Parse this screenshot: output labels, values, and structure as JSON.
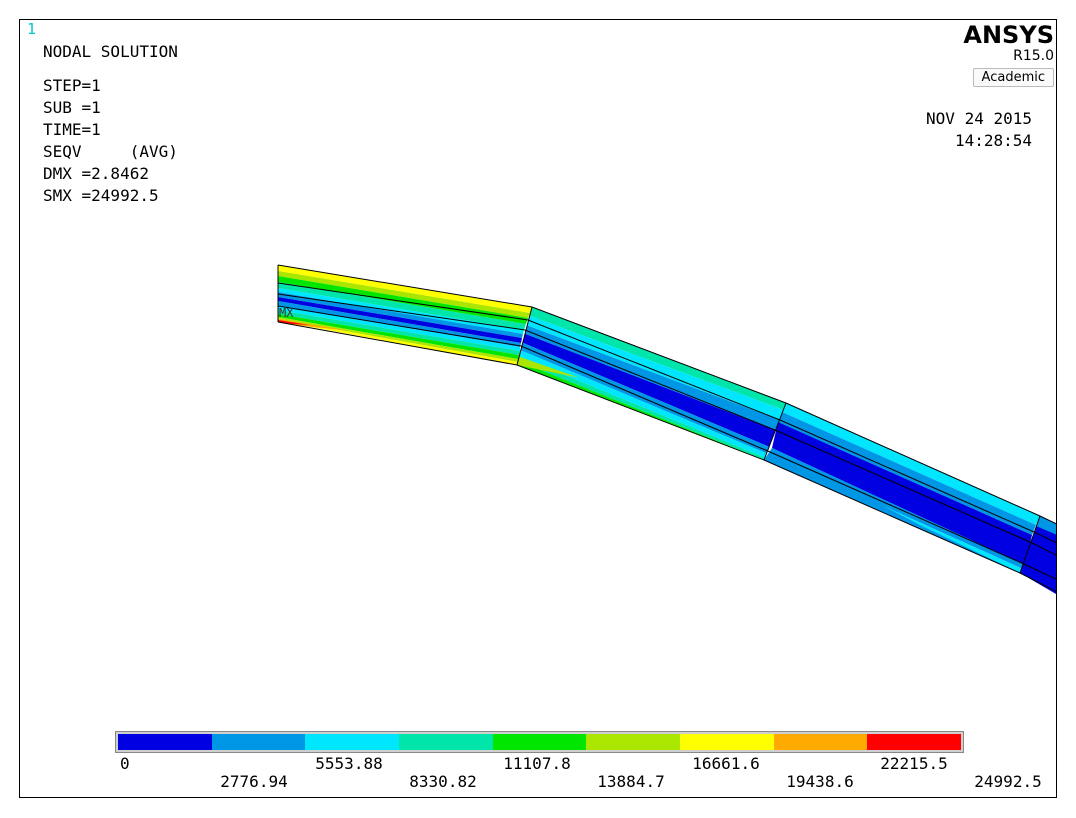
{
  "window_number": "1",
  "title": "NODAL SOLUTION",
  "info_lines": [
    "STEP=1",
    "SUB =1",
    "TIME=1",
    "SEQV     (AVG)",
    "DMX =2.8462",
    "SMX =24992.5"
  ],
  "brand": {
    "name": "ANSYS",
    "version": "R15.0",
    "edition": "Academic"
  },
  "date": "NOV 24 2015",
  "time": "14:28:54",
  "max_marker": "MX",
  "legend": {
    "colors": [
      "#0000e0",
      "#0096e6",
      "#00e6ff",
      "#00e6aa",
      "#00e600",
      "#aae600",
      "#ffff00",
      "#ffaa00",
      "#ff0000"
    ],
    "values": [
      "0",
      "2776.94",
      "5553.88",
      "8330.82",
      "11107.8",
      "13884.7",
      "16661.6",
      "19438.6",
      "22215.5",
      "24992.5"
    ]
  }
}
